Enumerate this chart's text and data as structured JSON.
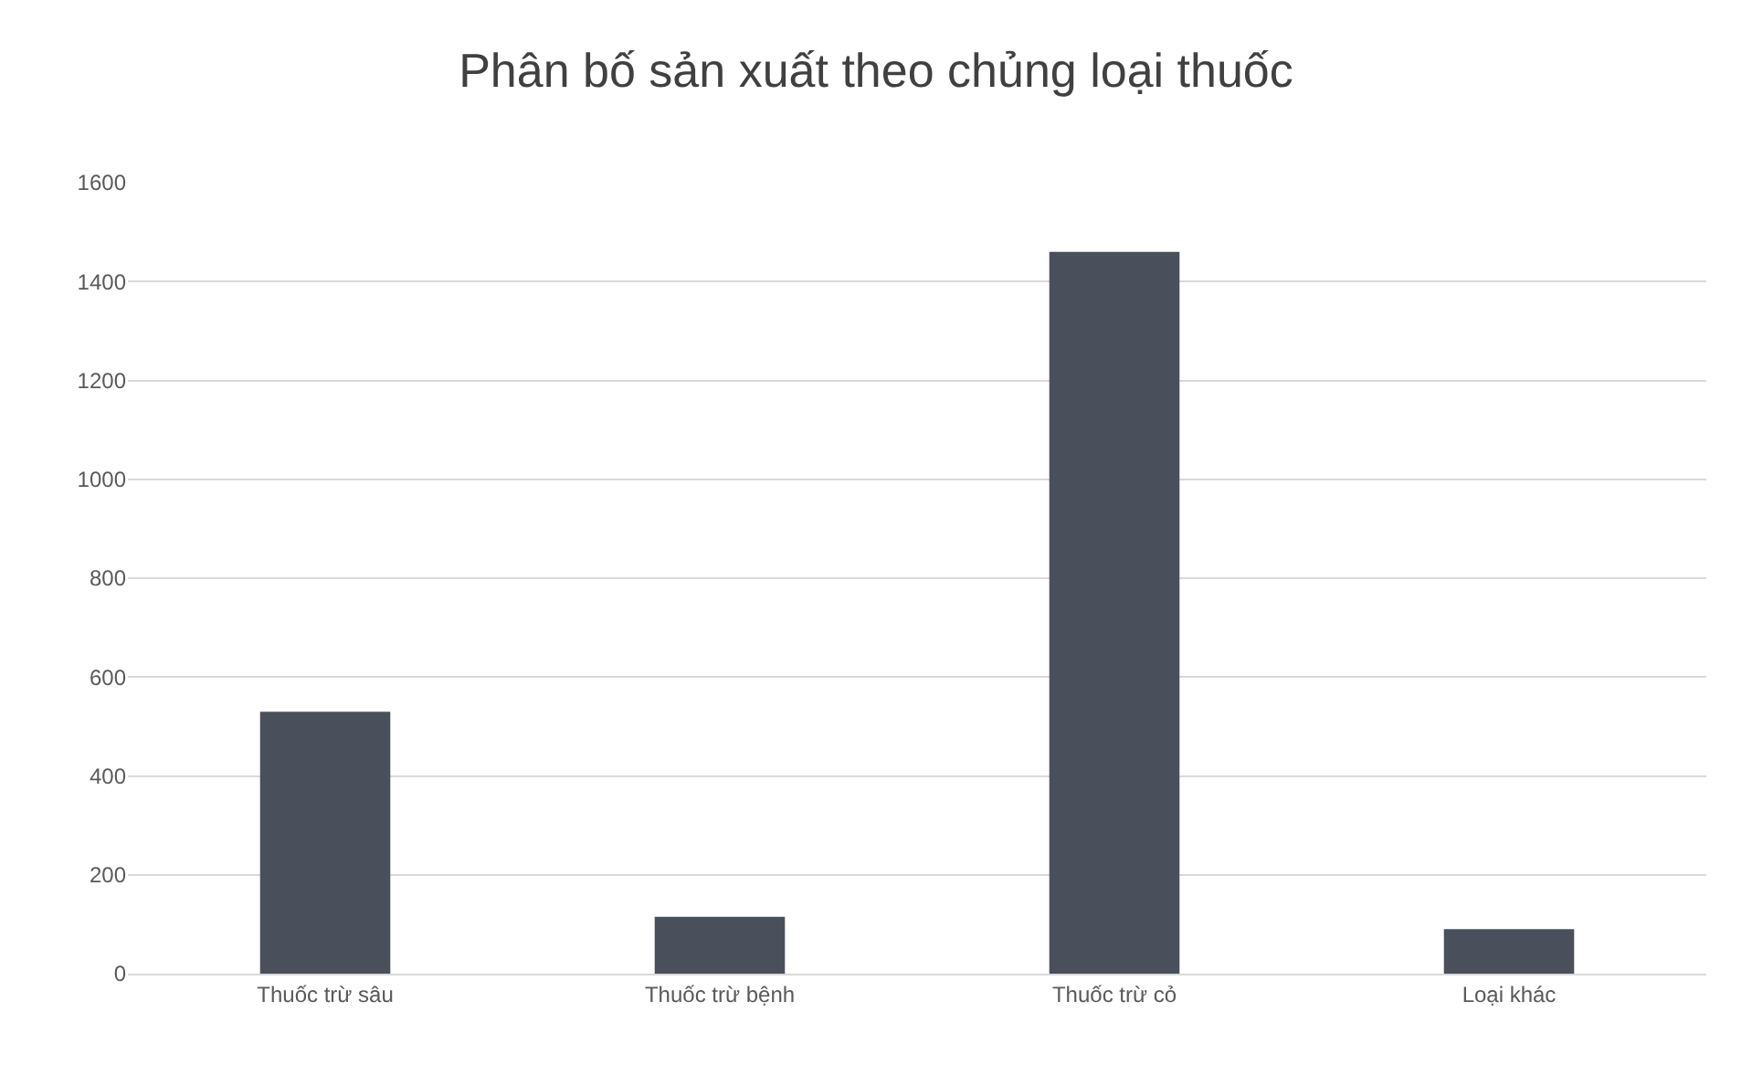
{
  "chart_data": {
    "type": "bar",
    "title": "Phân bố sản xuất theo chủng loại thuốc",
    "categories": [
      "Thuốc trừ sâu",
      "Thuốc trừ bệnh",
      "Thuốc trừ cỏ",
      "Loại khác"
    ],
    "values": [
      530,
      115,
      1460,
      90
    ],
    "color": "#4a4f5c",
    "ylim": [
      0,
      1600
    ],
    "yticks": [
      0,
      200,
      400,
      600,
      800,
      1000,
      1200,
      1400,
      1600
    ],
    "grid": "y",
    "legend": false
  }
}
